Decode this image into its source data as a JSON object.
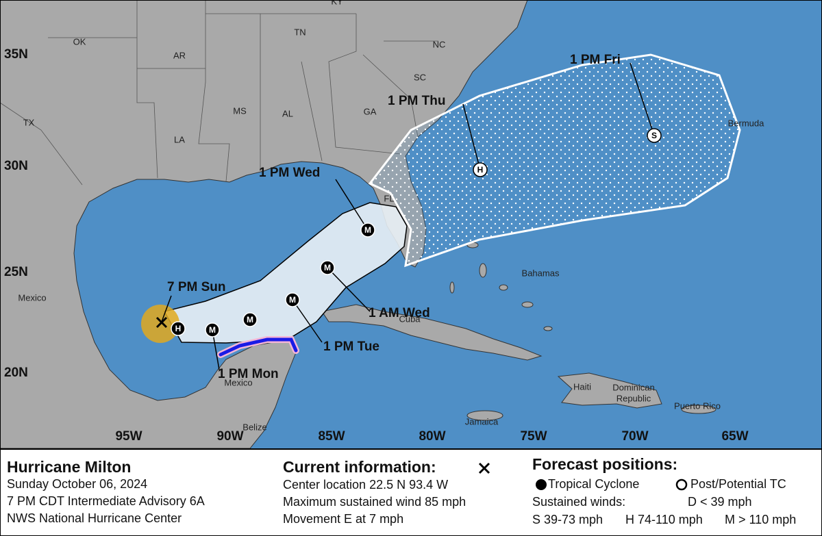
{
  "map": {
    "lat_labels": [
      "35N",
      "30N",
      "25N",
      "20N"
    ],
    "lon_labels": [
      "95W",
      "90W",
      "85W",
      "80W",
      "75W",
      "70W",
      "65W"
    ],
    "place_labels": [
      "KY",
      "OK",
      "AR",
      "TN",
      "NC",
      "SC",
      "MS",
      "AL",
      "GA",
      "TX",
      "LA",
      "FL",
      "Mexico",
      "Cuba",
      "Bahamas",
      "Bermuda",
      "Haiti",
      "Dominican",
      "Republic",
      "Jamaica",
      "Puerto Rico",
      "Mexico",
      "Belize"
    ],
    "forecast_labels": [
      "7 PM Sun",
      "1 PM Mon",
      "1 PM Tue",
      "1 AM Wed",
      "1 PM Wed",
      "1 PM Thu",
      "1 PM Fri"
    ],
    "point_letters": [
      "H",
      "M",
      "M",
      "M",
      "M",
      "M",
      "H",
      "S"
    ]
  },
  "legend": {
    "storm_name": "Hurricane Milton",
    "date": "Sunday October 06, 2024",
    "advisory": "7 PM CDT Intermediate Advisory 6A",
    "center": "NWS National Hurricane Center",
    "current_title": "Current information:",
    "center_location": "Center location 22.5 N 93.4 W",
    "max_wind": "Maximum sustained wind 85 mph",
    "movement": "Movement E at 7 mph",
    "forecast_title": "Forecast positions:",
    "tropical_cyclone": "Tropical Cyclone",
    "post_tc": "Post/Potential TC",
    "sustained_winds": "Sustained winds:",
    "d_range": "D < 39 mph",
    "s_range": "S 39-73 mph",
    "h_range": "H 74-110 mph",
    "m_range": "M > 110 mph"
  }
}
